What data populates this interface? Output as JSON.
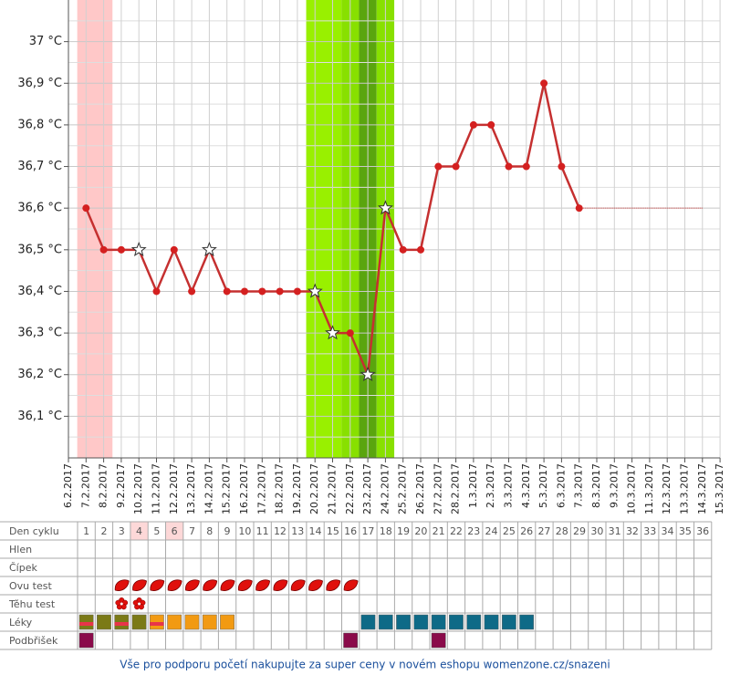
{
  "chart_data": {
    "type": "line",
    "categories": [
      "6.2.2017",
      "7.2.2017",
      "8.2.2017",
      "9.2.2017",
      "10.2.2017",
      "11.2.2017",
      "12.2.2017",
      "13.2.2017",
      "14.2.2017",
      "15.2.2017",
      "16.2.2017",
      "17.2.2017",
      "18.2.2017",
      "19.2.2017",
      "20.2.2017",
      "21.2.2017",
      "22.2.2017",
      "23.2.2017",
      "24.2.2017",
      "25.2.2017",
      "26.2.2017",
      "27.2.2017",
      "28.2.2017",
      "1.3.2017",
      "2.3.2017",
      "3.3.2017",
      "4.3.2017",
      "5.3.2017",
      "6.3.2017",
      "7.3.2017",
      "8.3.2017",
      "9.3.2017",
      "10.3.2017",
      "11.3.2017",
      "12.3.2017",
      "13.3.2017",
      "14.3.2017",
      "15.3.2017"
    ],
    "values": [
      null,
      36.6,
      36.5,
      36.5,
      36.5,
      36.4,
      36.5,
      36.4,
      36.5,
      36.4,
      36.4,
      36.4,
      36.4,
      36.4,
      36.4,
      36.3,
      36.3,
      36.2,
      36.6,
      36.5,
      36.5,
      36.7,
      36.7,
      36.8,
      36.8,
      36.7,
      36.7,
      36.9,
      36.7,
      36.6,
      null,
      null,
      null,
      null,
      null,
      null,
      null,
      null
    ],
    "markers": [
      null,
      "dot",
      "dot",
      "dot",
      "star",
      "dot",
      "dot",
      "dot",
      "star",
      "dot",
      "dot",
      "dot",
      "dot",
      "dot",
      "star",
      "star",
      "dot",
      "star",
      "star",
      "dot",
      "dot",
      "dot",
      "dot",
      "dot",
      "dot",
      "dot",
      "dot",
      "dot",
      "dot",
      "dot",
      null,
      null,
      null,
      null,
      null,
      null,
      null,
      null
    ],
    "color": "#c53030",
    "projection": {
      "from": "7.3.2017",
      "to": "14.3.2017",
      "value": 36.6
    },
    "bands": [
      {
        "from": "7.2.2017",
        "to": "8.2.2017",
        "color": "#ffc8c8"
      },
      {
        "from": "20.2.2017",
        "to": "21.2.2017",
        "color": "#99f000"
      },
      {
        "from": "22.2.2017",
        "to": "22.2.2017",
        "color": "#88e000"
      },
      {
        "from": "23.2.2017",
        "to": "23.2.2017",
        "color": "#5aa50e"
      },
      {
        "from": "24.2.2017",
        "to": "24.2.2017",
        "color": "#88e000"
      }
    ],
    "ylim": [
      36.0,
      37.1
    ],
    "yticks": [
      {
        "value": 36.1,
        "label": "36,1 °C"
      },
      {
        "value": 36.2,
        "label": "36,2 °C"
      },
      {
        "value": 36.3,
        "label": "36,3 °C"
      },
      {
        "value": 36.4,
        "label": "36,4 °C"
      },
      {
        "value": 36.5,
        "label": "36,5 °C"
      },
      {
        "value": 36.6,
        "label": "36,6 °C"
      },
      {
        "value": 36.7,
        "label": "36,7 °C"
      },
      {
        "value": 36.8,
        "label": "36,8 °C"
      },
      {
        "value": 36.9,
        "label": "36,9 °C"
      },
      {
        "value": 37,
        "label": "37 °C"
      }
    ],
    "grid": true
  },
  "cycle_table": {
    "rows": [
      "Den cyklu",
      "Hlen",
      "Čípek",
      "Ovu test",
      "Těhu test",
      "Léky",
      "Podbřišek"
    ],
    "days": [
      1,
      2,
      3,
      4,
      5,
      6,
      7,
      8,
      9,
      10,
      11,
      12,
      13,
      14,
      15,
      16,
      17,
      18,
      19,
      20,
      21,
      22,
      23,
      24,
      25,
      26,
      27,
      28,
      29,
      30,
      31,
      32,
      33,
      34,
      35,
      36
    ],
    "highlighted_days": [
      4,
      6
    ],
    "ovu_test_days": [
      3,
      4,
      5,
      6,
      7,
      8,
      9,
      10,
      11,
      12,
      13,
      14,
      15,
      16
    ],
    "pregnancy_test_days": [
      3,
      4
    ],
    "meds": [
      {
        "day": 1,
        "colors": [
          "#7b7a16",
          "#e8344a"
        ]
      },
      {
        "day": 2,
        "colors": [
          "#7b7a16"
        ]
      },
      {
        "day": 3,
        "colors": [
          "#7b7a16",
          "#e8344a"
        ]
      },
      {
        "day": 4,
        "colors": [
          "#7b7a16"
        ]
      },
      {
        "day": 5,
        "colors": [
          "#f29a12",
          "#e8344a"
        ]
      },
      {
        "day": 6,
        "colors": [
          "#f29a12"
        ]
      },
      {
        "day": 7,
        "colors": [
          "#f29a12"
        ]
      },
      {
        "day": 8,
        "colors": [
          "#f29a12"
        ]
      },
      {
        "day": 9,
        "colors": [
          "#f29a12"
        ]
      },
      {
        "day": 17,
        "colors": [
          "#0e6a87"
        ]
      },
      {
        "day": 18,
        "colors": [
          "#0e6a87"
        ]
      },
      {
        "day": 19,
        "colors": [
          "#0e6a87"
        ]
      },
      {
        "day": 20,
        "colors": [
          "#0e6a87"
        ]
      },
      {
        "day": 21,
        "colors": [
          "#0e6a87"
        ]
      },
      {
        "day": 22,
        "colors": [
          "#0e6a87"
        ]
      },
      {
        "day": 23,
        "colors": [
          "#0e6a87"
        ]
      },
      {
        "day": 24,
        "colors": [
          "#0e6a87"
        ]
      },
      {
        "day": 25,
        "colors": [
          "#0e6a87"
        ]
      },
      {
        "day": 26,
        "colors": [
          "#0e6a87"
        ]
      }
    ],
    "pain_days": [
      1,
      16,
      21
    ],
    "pain_color": "#8a0b4a"
  },
  "footer": "Vše pro podporu početí nakupujte za super ceny v novém eshopu womenzone.cz/snazeni"
}
